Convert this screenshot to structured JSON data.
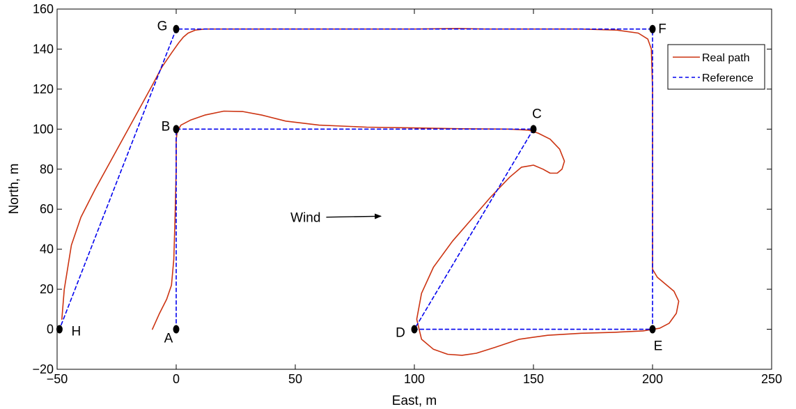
{
  "chart_data": {
    "type": "line",
    "xlabel": "East, m",
    "ylabel": "North, m",
    "xlim": [
      -50,
      250
    ],
    "ylim": [
      -20,
      160
    ],
    "xticks": [
      -50,
      0,
      50,
      100,
      150,
      200,
      250
    ],
    "yticks": [
      -20,
      0,
      20,
      40,
      60,
      80,
      100,
      120,
      140,
      160
    ],
    "grid": false,
    "legend_position": "top-right",
    "series": [
      {
        "name": "Real path",
        "color": "#cc3311",
        "style": "solid",
        "x": [
          -10,
          -7,
          -4,
          -2,
          -1,
          -0.5,
          0,
          0,
          0.5,
          2,
          6,
          12,
          20,
          28,
          36,
          46,
          60,
          80,
          100,
          120,
          140,
          148,
          152,
          157,
          161,
          163,
          162,
          160,
          157,
          154,
          150,
          145,
          140,
          132,
          124,
          116,
          108,
          103,
          101,
          103,
          108,
          114,
          120,
          126,
          134,
          144,
          156,
          170,
          184,
          196,
          203,
          207,
          210,
          211,
          209,
          206,
          202,
          200,
          200,
          200,
          200,
          200,
          200,
          199.5,
          198,
          194,
          185,
          170,
          150,
          130,
          118,
          100,
          80,
          60,
          40,
          20,
          12,
          8,
          5,
          3,
          1,
          -2,
          -6,
          -10,
          -16,
          -22,
          -28,
          -34,
          -40,
          -44,
          -47,
          -48
        ],
        "y": [
          0,
          8,
          15,
          22,
          35,
          55,
          80,
          95,
          99,
          102,
          104.5,
          107,
          109,
          108.8,
          107,
          104,
          102,
          101,
          100.6,
          100.2,
          100,
          99.5,
          98,
          95,
          90,
          84,
          80,
          78,
          78,
          80,
          82,
          81,
          76,
          66,
          55,
          44,
          31,
          18,
          5,
          -5,
          -10,
          -12.5,
          -13,
          -12,
          -9,
          -5,
          -3,
          -2,
          -1.5,
          -0.8,
          0.5,
          3,
          8,
          14,
          19,
          22,
          26,
          30,
          40,
          60,
          80,
          100,
          120,
          140,
          145,
          148,
          149.5,
          150,
          150,
          150,
          150.3,
          150,
          150,
          150,
          150,
          150,
          150,
          149.5,
          148,
          146,
          143,
          138,
          131,
          122,
          109,
          96,
          83,
          70,
          56,
          42,
          20,
          5
        ]
      },
      {
        "name": "Reference",
        "color": "#0000ee",
        "style": "dashed",
        "x": [
          0,
          0,
          150,
          100,
          200,
          200,
          0,
          -49
        ],
        "y": [
          0,
          100,
          100,
          0,
          0,
          150,
          150,
          0
        ]
      }
    ],
    "waypoints": [
      {
        "label": "A",
        "x": 0,
        "y": 0
      },
      {
        "label": "B",
        "x": 0,
        "y": 100
      },
      {
        "label": "C",
        "x": 150,
        "y": 100
      },
      {
        "label": "D",
        "x": 100,
        "y": 0
      },
      {
        "label": "E",
        "x": 200,
        "y": 0
      },
      {
        "label": "F",
        "x": 200,
        "y": 150
      },
      {
        "label": "G",
        "x": 0,
        "y": 150
      },
      {
        "label": "H",
        "x": -49,
        "y": 0
      }
    ],
    "annotation": {
      "text": "Wind",
      "arrow_from": [
        63,
        56
      ],
      "arrow_to": [
        86,
        56.5
      ]
    }
  }
}
